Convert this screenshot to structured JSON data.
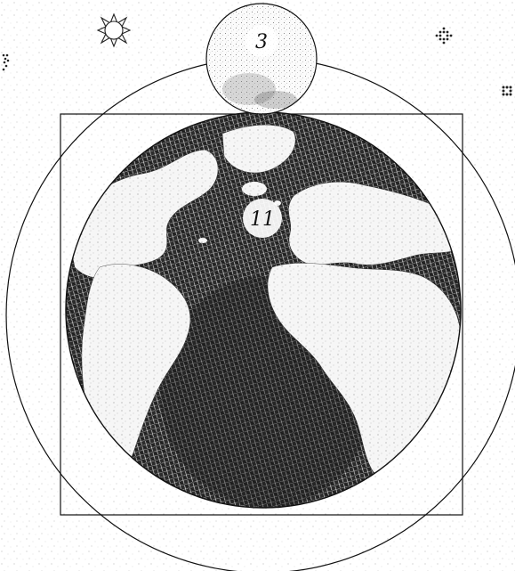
{
  "labels": {
    "large_globe_number": "11",
    "small_globe_number": "3"
  },
  "colors": {
    "background": "#ffffff",
    "stroke": "#111111",
    "ocean_texture": "#1a1a1a",
    "land": "#f7f7f7",
    "label_circle_fill": "#ffffff"
  },
  "icons": [
    "sun-star-icon",
    "diamond-dots-icon",
    "square-dots-icon",
    "triangle-dots-icon"
  ]
}
